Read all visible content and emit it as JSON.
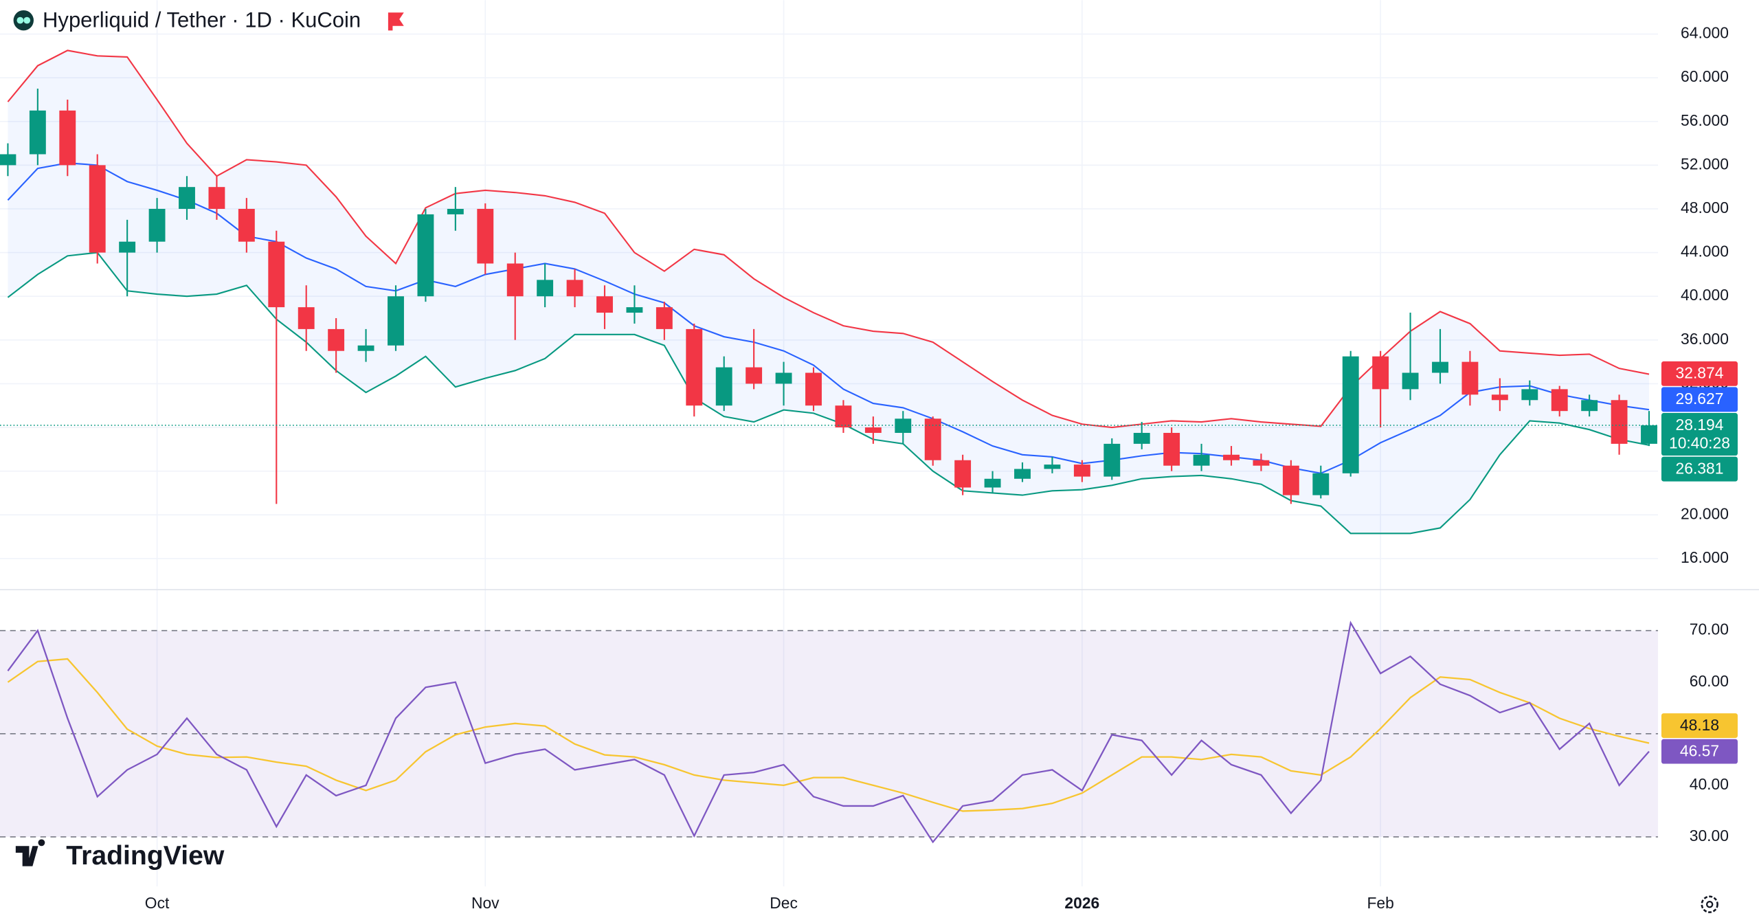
{
  "header": {
    "title": "Hyperliquid / Tether · 1D · KuCoin"
  },
  "branding": "TradingView",
  "chart_data": [
    {
      "type": "candlestick",
      "categories": [
        null,
        null,
        null,
        null,
        null,
        "Oct",
        null,
        null,
        null,
        null,
        null,
        null,
        null,
        null,
        null,
        null,
        "Nov",
        null,
        null,
        null,
        null,
        null,
        null,
        null,
        null,
        null,
        "Dec",
        null,
        null,
        null,
        null,
        null,
        null,
        null,
        null,
        null,
        "2026",
        null,
        null,
        null,
        null,
        null,
        null,
        null,
        null,
        null,
        "Feb",
        null,
        null,
        null,
        null,
        null,
        null,
        null,
        null,
        null
      ],
      "ylim": [
        13.2,
        67.1
      ],
      "yticks": [
        {
          "value": 16,
          "label": "16.000"
        },
        {
          "value": 20,
          "label": "20.000"
        },
        {
          "value": 24,
          "label": "24.000"
        },
        {
          "value": 28,
          "label": "28.000"
        },
        {
          "value": 32,
          "label": "32.000"
        },
        {
          "value": 36,
          "label": "36.000"
        },
        {
          "value": 40,
          "label": "40.000"
        },
        {
          "value": 44,
          "label": "44.000"
        },
        {
          "value": 48,
          "label": "48.000"
        },
        {
          "value": 52,
          "label": "52.000"
        },
        {
          "value": 56,
          "label": "56.000"
        },
        {
          "value": 60,
          "label": "60.000"
        },
        {
          "value": 64,
          "label": "64.000"
        }
      ],
      "grid": true,
      "up_color": "#089981",
      "down_color": "#f23645",
      "band_fill": "#2962ff",
      "candles": [
        [
          52,
          54,
          51,
          53
        ],
        [
          53,
          59,
          52,
          57
        ],
        [
          57,
          58,
          51,
          52
        ],
        [
          52,
          53,
          43,
          44
        ],
        [
          44,
          47,
          40,
          45
        ],
        [
          45,
          49,
          44,
          48
        ],
        [
          48,
          51,
          47,
          50
        ],
        [
          50,
          51,
          47,
          48
        ],
        [
          48,
          49,
          44,
          45
        ],
        [
          45,
          46,
          21,
          39
        ],
        [
          39,
          41,
          35,
          37
        ],
        [
          37,
          38,
          33,
          35
        ],
        [
          35,
          37,
          34,
          35.5
        ],
        [
          35.5,
          41,
          35,
          40
        ],
        [
          40,
          48,
          39.5,
          47.5
        ],
        [
          47.5,
          50,
          46,
          48
        ],
        [
          48,
          48.5,
          42,
          43
        ],
        [
          43,
          44,
          36,
          40
        ],
        [
          40,
          43,
          39,
          41.5
        ],
        [
          41.5,
          42.5,
          39,
          40
        ],
        [
          40,
          41,
          37,
          38.5
        ],
        [
          38.5,
          41,
          37.5,
          39
        ],
        [
          39,
          39.5,
          36,
          37
        ],
        [
          37,
          37.5,
          29,
          30
        ],
        [
          30,
          34.5,
          29.5,
          33.5
        ],
        [
          33.5,
          37,
          31.5,
          32
        ],
        [
          32,
          34,
          30,
          33
        ],
        [
          33,
          33.5,
          29.5,
          30
        ],
        [
          30,
          30.5,
          27.5,
          28
        ],
        [
          28,
          29,
          26.5,
          27.5
        ],
        [
          27.5,
          29.5,
          26.5,
          28.8
        ],
        [
          28.8,
          29,
          24.5,
          25
        ],
        [
          25,
          25.5,
          21.8,
          22.5
        ],
        [
          22.5,
          24,
          22,
          23.3
        ],
        [
          23.3,
          24.8,
          23,
          24.2
        ],
        [
          24.2,
          25.3,
          23.8,
          24.6
        ],
        [
          24.6,
          25,
          23,
          23.5
        ],
        [
          23.5,
          27,
          23.2,
          26.5
        ],
        [
          26.5,
          28.5,
          26,
          27.5
        ],
        [
          27.5,
          28,
          24,
          24.5
        ],
        [
          24.5,
          26.5,
          24,
          25.5
        ],
        [
          25.5,
          26.3,
          24.5,
          25
        ],
        [
          25,
          25.6,
          24,
          24.5
        ],
        [
          24.5,
          25,
          21,
          21.8
        ],
        [
          21.8,
          24.5,
          21.5,
          23.8
        ],
        [
          23.8,
          35,
          23.5,
          34.5
        ],
        [
          34.5,
          35,
          28,
          31.5
        ],
        [
          31.5,
          38.5,
          30.5,
          33
        ],
        [
          33,
          37,
          32,
          34
        ],
        [
          34,
          35,
          30,
          31
        ],
        [
          31,
          32.5,
          29.5,
          30.5
        ],
        [
          30.5,
          32.3,
          30,
          31.5
        ],
        [
          31.5,
          31.8,
          29,
          29.5
        ],
        [
          29.5,
          31,
          29,
          30.5
        ],
        [
          30.5,
          31,
          25.5,
          26.5
        ],
        [
          26.5,
          29.5,
          26.3,
          28.194
        ]
      ],
      "series": [
        {
          "color": "#f23645",
          "values": [
            57.8,
            61.1,
            62.5,
            62,
            61.9,
            58,
            54,
            51,
            52.5,
            52.3,
            52,
            49.1,
            45.5,
            43,
            48.1,
            49.4,
            49.7,
            49.5,
            49.2,
            48.6,
            47.6,
            44,
            42.3,
            44.3,
            43.8,
            41.6,
            39.9,
            38.5,
            37.3,
            36.8,
            36.6,
            35.8,
            34,
            32.2,
            30.5,
            29.1,
            28.3,
            28,
            28.3,
            28.6,
            28.5,
            28.8,
            28.5,
            28.3,
            28.1,
            31.7,
            34.3,
            36.8,
            38.6,
            37.5,
            35,
            34.8,
            34.6,
            34.7,
            33.4,
            32.874
          ]
        },
        {
          "color": "#2962ff",
          "values": [
            48.8,
            51.7,
            52.2,
            52,
            50.5,
            49.7,
            48.8,
            47.6,
            45.5,
            45,
            43.5,
            42.5,
            40.9,
            40.5,
            41.5,
            40.9,
            42,
            42.5,
            43,
            42.5,
            41.4,
            40.2,
            39.4,
            37.3,
            36.3,
            35.8,
            35,
            33.7,
            31.5,
            30.2,
            29.8,
            28.8,
            27.6,
            26.3,
            25.5,
            25.3,
            24.7,
            25,
            25.4,
            25.7,
            25.6,
            25.3,
            25,
            24.3,
            23.8,
            25,
            26.6,
            27.8,
            29.1,
            31.2,
            31.7,
            31.8,
            31,
            30.5,
            30,
            29.627
          ]
        },
        {
          "color": "#089981",
          "values": [
            39.9,
            42,
            43.7,
            44,
            40.5,
            40.2,
            40,
            40.2,
            41,
            37.9,
            35.8,
            33.2,
            31.2,
            32.7,
            34.5,
            31.7,
            32.5,
            33.2,
            34.3,
            36.5,
            36.5,
            36.5,
            35.5,
            30.7,
            29,
            28.5,
            29.6,
            29.3,
            28.3,
            26.9,
            26.5,
            24,
            22.2,
            22,
            21.8,
            22.2,
            22.3,
            22.7,
            23.3,
            23.5,
            23.6,
            23.3,
            22.8,
            21.3,
            20.8,
            18.3,
            18.3,
            18.3,
            18.8,
            21.4,
            25.5,
            28.6,
            28.4,
            27.8,
            26.9,
            26.381
          ]
        }
      ],
      "countdown": "10:40:28"
    },
    {
      "type": "line",
      "ylim": [
        20.4,
        77.6
      ],
      "yticks": [
        {
          "value": 30,
          "label": "30.00"
        },
        {
          "value": 40,
          "label": "40.00"
        },
        {
          "value": 50,
          "label": "50.00"
        },
        {
          "value": 60,
          "label": "60.00"
        },
        {
          "value": 70,
          "label": "70.00"
        }
      ],
      "levels": [
        70,
        50,
        30
      ],
      "band_fill": "#7e57c2",
      "series": [
        {
          "color": "#7e57c2",
          "values": [
            62.2,
            70,
            53,
            37.8,
            43,
            46,
            53,
            46,
            43,
            32,
            42,
            38,
            40,
            53,
            59,
            60,
            44.3,
            46,
            47,
            43,
            44,
            45,
            42,
            30.2,
            42,
            42.5,
            44,
            37.8,
            36,
            36,
            38,
            29,
            36,
            37,
            42,
            43,
            39,
            49.8,
            48.7,
            42,
            48.7,
            44,
            42,
            34.6,
            41,
            71.5,
            61.7,
            65,
            59.6,
            57.4,
            54.1,
            56,
            47,
            52,
            40,
            46.57
          ]
        },
        {
          "color": "#f7c530",
          "values": [
            60,
            64,
            64.5,
            58,
            50.9,
            47.6,
            46,
            45.4,
            45.5,
            44.5,
            43.7,
            41,
            39,
            41,
            46.5,
            49.8,
            51.3,
            52,
            51.5,
            48,
            45.9,
            45.5,
            44,
            42,
            41,
            40.5,
            40,
            41.5,
            41.5,
            40,
            38.5,
            36.7,
            35,
            35.2,
            35.5,
            36.5,
            38.5,
            42,
            45.5,
            45.5,
            45,
            46,
            45.5,
            42.8,
            42,
            45.5,
            51,
            57,
            61,
            60.5,
            58,
            56,
            53,
            51,
            49.5,
            48.18
          ]
        }
      ]
    }
  ]
}
